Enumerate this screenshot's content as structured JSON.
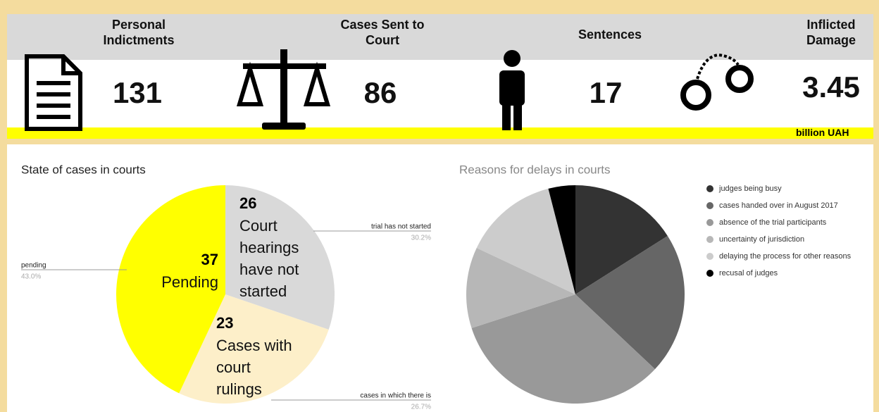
{
  "header": {
    "stats": [
      {
        "label": "Personal Indictments",
        "value": 131
      },
      {
        "label": "Cases Sent to Court",
        "value": 86
      },
      {
        "label": "Sentences",
        "value": 17
      },
      {
        "label": "Inflicted Damage",
        "value": 3.45,
        "unit": "billion UAH"
      }
    ]
  },
  "chart_data": [
    {
      "type": "pie",
      "title": "State of cases in courts",
      "categories": [
        "trial has not started",
        "cases in which there is",
        "pending"
      ],
      "values": [
        26,
        23,
        37
      ],
      "percent_labels": [
        "30.2%",
        "26.7%",
        "43.0%"
      ],
      "inner_labels": [
        [
          "Court",
          "hearings",
          "have not",
          "started"
        ],
        [
          "Cases with",
          "court",
          "rulings"
        ],
        [
          "Pending"
        ]
      ],
      "colors": [
        "#d9d9d9",
        "#fdefc9",
        "#ffff00"
      ]
    },
    {
      "type": "pie",
      "title": "Reasons for delays in courts",
      "categories": [
        "judges being busy",
        "cases handed over in August 2017",
        "absence of the trial participants",
        "uncertainty of jurisdiction",
        "delaying the process for other reasons",
        "recusal of judges"
      ],
      "values": [
        16,
        21,
        33,
        12,
        14,
        4
      ],
      "colors": [
        "#333333",
        "#666666",
        "#999999",
        "#b7b7b7",
        "#cccccc",
        "#000000"
      ],
      "legend": "right"
    }
  ]
}
